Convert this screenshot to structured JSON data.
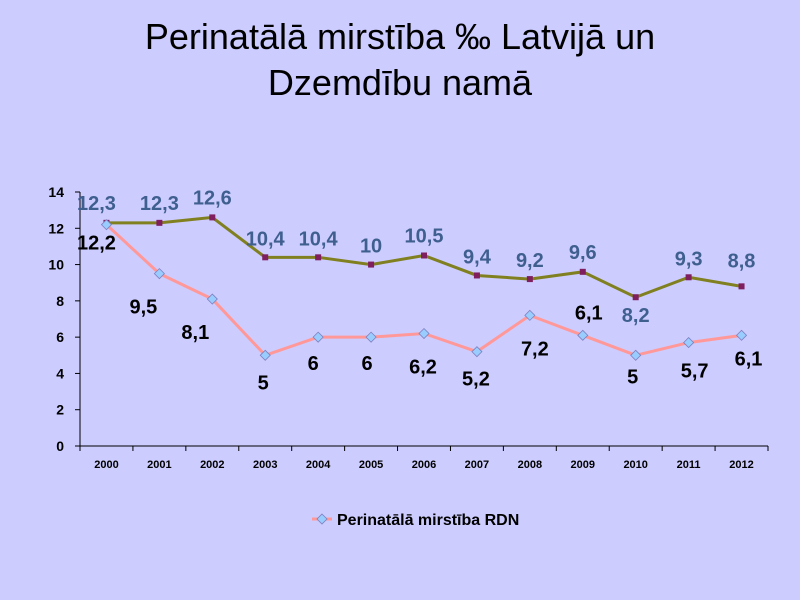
{
  "slide": {
    "title": "Perinatālā mirstība ‰ Latvijā un Dzemdību namā"
  },
  "chart_data": {
    "type": "line",
    "title": "Perinatālā mirstība ‰ Latvijā un Dzemdību namā",
    "xlabel": "",
    "ylabel": "",
    "ylim": [
      0,
      14
    ],
    "yticks": [
      "0",
      "2",
      "4",
      "6",
      "8",
      "10",
      "12",
      "14"
    ],
    "grid": false,
    "legend_position": "bottom",
    "x": [
      "2000",
      "2001",
      "2002",
      "2003",
      "2004",
      "2005",
      "2006",
      "2007",
      "2008",
      "2009",
      "2010",
      "2011",
      "2012"
    ],
    "series": [
      {
        "name": "",
        "color": "#808020",
        "marker_color": "#7F1F5F",
        "label_color": "#3F5F8F",
        "values": [
          12.3,
          12.3,
          12.6,
          10.4,
          10.4,
          10.0,
          10.5,
          9.4,
          9.2,
          9.6,
          8.2,
          9.3,
          8.8
        ],
        "labels": [
          "12,3",
          "12,3",
          "12,6",
          "10,4",
          "10,4",
          "10",
          "10,5",
          "9,4",
          "9,2",
          "9,6",
          "8,2",
          "9,3",
          "8,8"
        ]
      },
      {
        "name": "Perinatālā mirstība RDN",
        "color": "#FF9999",
        "marker_color": "#99CCFF",
        "label_color": "#000000",
        "values": [
          12.2,
          9.5,
          8.1,
          5.0,
          6.0,
          6.0,
          6.2,
          5.2,
          7.2,
          6.1,
          5.0,
          5.7,
          6.1
        ],
        "labels": [
          "12,2",
          "9,5",
          "8,1",
          "5",
          "6",
          "6",
          "6,2",
          "5,2",
          "7,2",
          "6,1",
          "5",
          "5,7",
          "6,1"
        ]
      }
    ]
  }
}
